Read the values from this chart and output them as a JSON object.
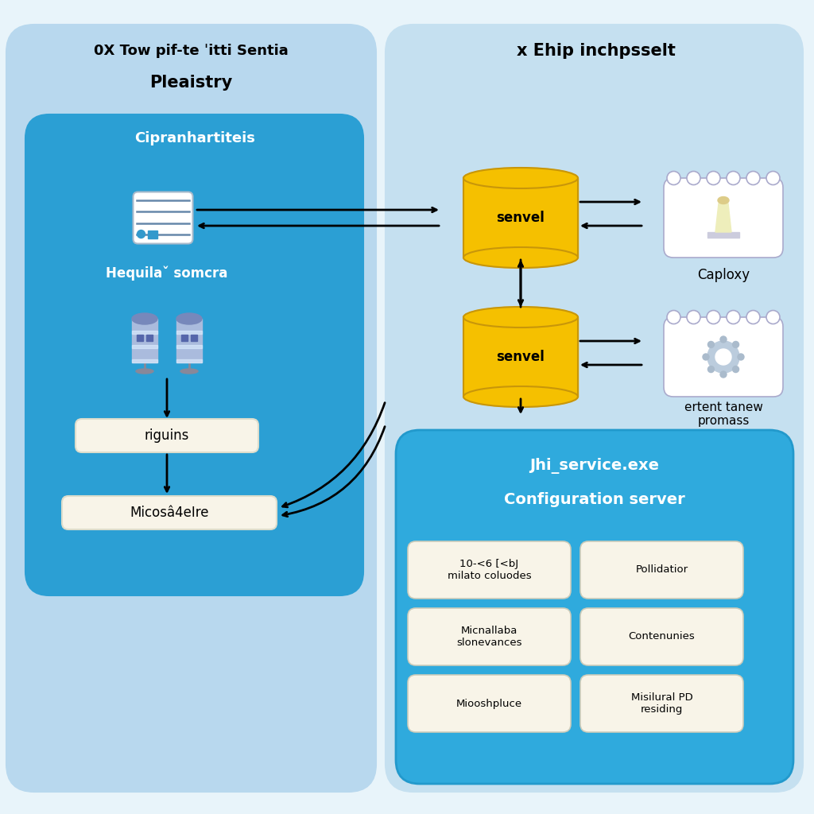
{
  "bg_color": "#e8f4fa",
  "left_panel_bg": "#b8d8ee",
  "left_panel_title1": "0X Tow pif-te ˈitti Sentia",
  "left_panel_title2": "Pleaistry",
  "right_panel_bg": "#c5e0f0",
  "right_panel_title": "x Ehip inchpsselt",
  "inner_left_bg": "#2b9fd4",
  "inner_left_title": "Cipranhartiteis",
  "left_box1_label": "riguins",
  "left_box2_label": "Micosâ4eIre",
  "left_sub_title": "Hequilaˇ somcra",
  "cylinder1_label": "senvel",
  "cylinder2_label": "senvel",
  "cloud1_label": "Caploxy",
  "cloud2_label": "ertent tanew\npromass",
  "config_box_bg": "#2faadd",
  "config_box_title1": "Jhi_service.exe",
  "config_box_title2": "Configuration server",
  "sub_boxes": [
    {
      "label": "10-<6 [<bJ\nmilato coluodes",
      "col": 0,
      "row": 0
    },
    {
      "label": "Pollidatior",
      "col": 1,
      "row": 0
    },
    {
      "label": "Micnallaba\nslonevances",
      "col": 0,
      "row": 1
    },
    {
      "label": "Contenunies",
      "col": 1,
      "row": 1
    },
    {
      "label": "Miooshpluce",
      "col": 0,
      "row": 2
    },
    {
      "label": "Misilural PD\nresiding",
      "col": 1,
      "row": 2
    }
  ]
}
